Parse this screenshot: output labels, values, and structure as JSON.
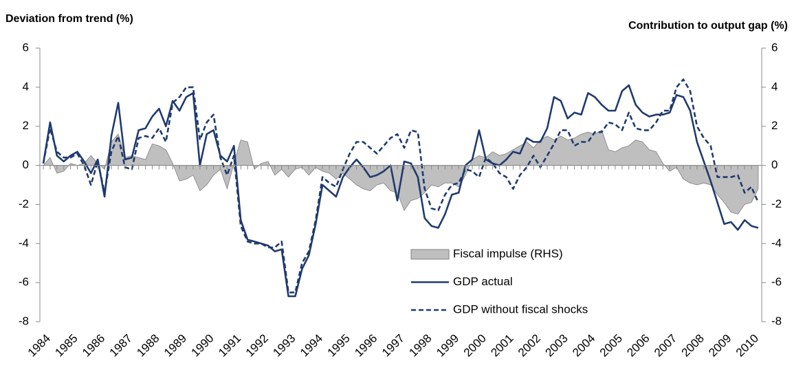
{
  "chart_data": {
    "type": "line",
    "y_label": "Deviation from trend (%)",
    "y2_label": "Contribution to output gap (%)",
    "categories": [
      "1984",
      null,
      null,
      null,
      "1985",
      null,
      null,
      null,
      "1986",
      null,
      null,
      null,
      "1987",
      null,
      null,
      null,
      "1988",
      null,
      null,
      null,
      "1989",
      null,
      null,
      null,
      "1990",
      null,
      null,
      null,
      "1991",
      null,
      null,
      null,
      "1992",
      null,
      null,
      null,
      "1993",
      null,
      null,
      null,
      "1994",
      null,
      null,
      null,
      "1995",
      null,
      null,
      null,
      "1996",
      null,
      null,
      null,
      "1997",
      null,
      null,
      null,
      "1998",
      null,
      null,
      null,
      "1999",
      null,
      null,
      null,
      "2000",
      null,
      null,
      null,
      "2001",
      null,
      null,
      null,
      "2002",
      null,
      null,
      null,
      "2003",
      null,
      null,
      null,
      "2004",
      null,
      null,
      null,
      "2005",
      null,
      null,
      null,
      "2006",
      null,
      null,
      null,
      "2007",
      null,
      null,
      null,
      "2008",
      null,
      null,
      null,
      "2009",
      null,
      null,
      null,
      "2010",
      null
    ],
    "ylim": [
      -8,
      6
    ],
    "yticks": [
      -8,
      -6,
      -4,
      -2,
      0,
      2,
      4,
      6
    ],
    "y2lim": [
      -8,
      6
    ],
    "y2ticks": [
      -8,
      -6,
      -4,
      -2,
      0,
      2,
      4,
      6
    ],
    "series": [
      {
        "name": "Fiscal impulse (RHS)",
        "color": "#bfbfbf",
        "axis": "y2",
        "style": "area",
        "values": [
          0.0,
          0.4,
          -0.4,
          -0.3,
          0.1,
          0.0,
          0.1,
          0.5,
          0.1,
          -0.2,
          1.2,
          1.6,
          0.4,
          0.5,
          0.4,
          0.3,
          1.1,
          1.0,
          0.8,
          0.1,
          -0.8,
          -0.7,
          -0.5,
          -1.3,
          -1.0,
          -0.5,
          -0.2,
          -1.2,
          0.1,
          1.3,
          1.2,
          -0.2,
          0.1,
          0.2,
          -0.5,
          -0.2,
          -0.6,
          -0.2,
          -0.1,
          -0.5,
          -0.1,
          -0.3,
          -0.4,
          -0.7,
          -0.4,
          -0.7,
          -1.0,
          -1.2,
          -1.3,
          -1.0,
          -0.9,
          -1.3,
          -1.4,
          -2.3,
          -1.8,
          -1.7,
          -1.4,
          -1.0,
          -1.1,
          -0.9,
          -0.9,
          -1.1,
          -0.5,
          0.3,
          0.5,
          0.4,
          0.7,
          0.5,
          0.6,
          0.8,
          1.0,
          1.2,
          0.9,
          1.3,
          1.5,
          1.3,
          1.5,
          1.3,
          1.4,
          1.6,
          1.7,
          1.6,
          1.8,
          0.8,
          0.7,
          0.9,
          1.0,
          1.3,
          1.2,
          0.8,
          0.7,
          0.1,
          -0.3,
          -0.1,
          -0.7,
          -0.9,
          -1.0,
          -0.9,
          -1.0,
          -1.5,
          -1.9,
          -2.4,
          -2.5,
          -2.0,
          -1.9,
          -1.2
        ]
      },
      {
        "name": "GDP actual",
        "color": "#1f3a6e",
        "style": "solid",
        "values": [
          0.1,
          2.2,
          0.5,
          0.2,
          0.5,
          0.7,
          0.2,
          -0.4,
          0.3,
          -1.6,
          1.5,
          3.2,
          0.3,
          0.4,
          1.8,
          1.9,
          2.5,
          2.9,
          2.0,
          3.3,
          2.8,
          3.5,
          3.7,
          0.0,
          1.6,
          1.8,
          0.5,
          0.2,
          1.0,
          -2.8,
          -3.8,
          -3.9,
          -4.0,
          -4.1,
          -4.4,
          -4.3,
          -6.7,
          -6.7,
          -5.3,
          -4.6,
          -3.0,
          -1.0,
          -1.3,
          -1.6,
          -0.6,
          -0.1,
          0.3,
          -0.1,
          -0.6,
          -0.5,
          -0.3,
          0.0,
          -1.8,
          0.2,
          0.1,
          -0.6,
          -2.7,
          -3.1,
          -3.2,
          -2.5,
          -1.5,
          -1.4,
          0.0,
          0.3,
          1.8,
          0.3,
          0.1,
          0.0,
          0.3,
          0.7,
          0.6,
          1.4,
          1.2,
          1.2,
          1.9,
          3.5,
          3.3,
          2.4,
          2.7,
          2.6,
          3.7,
          3.5,
          3.1,
          2.8,
          2.8,
          3.8,
          4.1,
          3.1,
          2.7,
          2.5,
          2.6,
          2.6,
          2.7,
          3.6,
          3.5,
          2.8,
          1.2,
          0.2,
          -0.8,
          -1.9,
          -3.0,
          -2.9,
          -3.3,
          -2.8,
          -3.1,
          -3.2
        ]
      },
      {
        "name": "GDP without fiscal shocks",
        "color": "#1f3a6e",
        "style": "dashed",
        "values": [
          0.1,
          1.9,
          0.7,
          0.4,
          0.4,
          0.6,
          0.0,
          -1.0,
          0.2,
          -1.4,
          0.7,
          1.5,
          -0.1,
          -0.2,
          1.4,
          1.5,
          1.4,
          1.9,
          1.2,
          3.2,
          3.5,
          4.0,
          4.0,
          1.3,
          2.2,
          2.6,
          0.4,
          -0.5,
          0.5,
          -3.1,
          -3.9,
          -4.0,
          -4.0,
          -4.2,
          -4.2,
          -3.9,
          -6.5,
          -6.5,
          -5.0,
          -4.4,
          -2.8,
          -0.6,
          -0.9,
          -1.1,
          -0.2,
          0.6,
          1.2,
          1.2,
          0.9,
          0.6,
          1.0,
          1.4,
          1.6,
          0.9,
          1.8,
          1.7,
          -1.2,
          -2.2,
          -2.3,
          -1.5,
          -1.0,
          -0.9,
          -0.2,
          -0.3,
          -0.6,
          0.4,
          0.1,
          -0.4,
          -0.6,
          -1.2,
          -0.5,
          -0.1,
          0.5,
          -0.1,
          0.5,
          1.1,
          1.8,
          1.8,
          1.0,
          1.2,
          1.2,
          1.7,
          1.7,
          2.2,
          2.1,
          1.8,
          2.7,
          1.9,
          1.8,
          1.8,
          2.2,
          2.8,
          2.8,
          4.0,
          4.4,
          3.8,
          2.0,
          1.4,
          1.0,
          -0.6,
          -0.6,
          -0.6,
          -0.5,
          -1.4,
          -1.1,
          -1.9
        ]
      }
    ]
  }
}
